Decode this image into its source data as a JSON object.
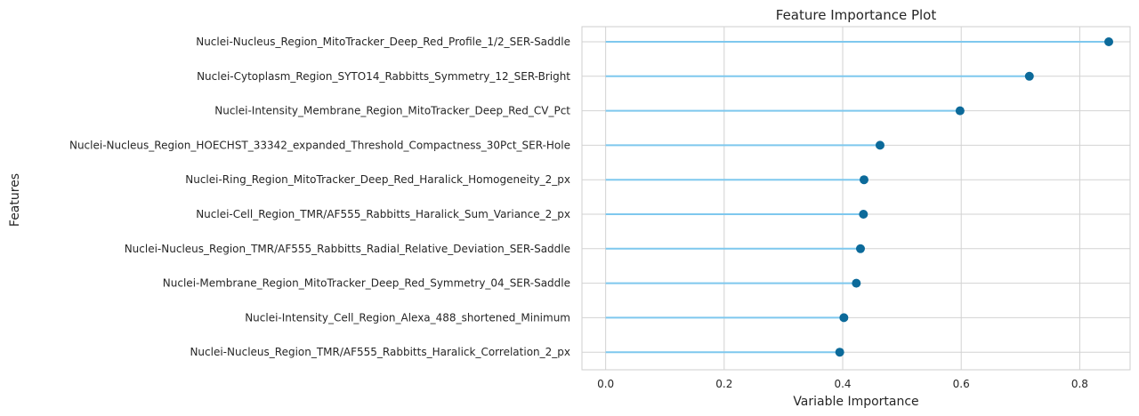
{
  "chart_data": {
    "type": "lollipop",
    "title": "Feature Importance Plot",
    "xlabel": "Variable Importance",
    "ylabel": "Features",
    "xlim": [
      -0.04,
      0.885
    ],
    "xticks": [
      0.0,
      0.2,
      0.4,
      0.6,
      0.8
    ],
    "xtick_labels": [
      "0.0",
      "0.2",
      "0.4",
      "0.6",
      "0.8"
    ],
    "grid": true,
    "colors": {
      "stem": "#7ec8ee",
      "marker": "#0c6a9a",
      "grid": "#d2d2d2",
      "spine": "#cfcfcf"
    },
    "categories": [
      "Nuclei-Nucleus_Region_MitoTracker_Deep_Red_Profile_1/2_SER-Saddle",
      "Nuclei-Cytoplasm_Region_SYTO14_Rabbitts_Symmetry_12_SER-Bright",
      "Nuclei-Intensity_Membrane_Region_MitoTracker_Deep_Red_CV_Pct",
      "Nuclei-Nucleus_Region_HOECHST_33342_expanded_Threshold_Compactness_30Pct_SER-Hole",
      "Nuclei-Ring_Region_MitoTracker_Deep_Red_Haralick_Homogeneity_2_px",
      "Nuclei-Cell_Region_TMR/AF555_Rabbitts_Haralick_Sum_Variance_2_px",
      "Nuclei-Nucleus_Region_TMR/AF555_Rabbitts_Radial_Relative_Deviation_SER-Saddle",
      "Nuclei-Membrane_Region_MitoTracker_Deep_Red_Symmetry_04_SER-Saddle",
      "Nuclei-Intensity_Cell_Region_Alexa_488_shortened_Minimum",
      "Nuclei-Nucleus_Region_TMR/AF555_Rabbitts_Haralick_Correlation_2_px"
    ],
    "values": [
      0.849,
      0.715,
      0.598,
      0.463,
      0.436,
      0.435,
      0.43,
      0.423,
      0.402,
      0.395
    ]
  }
}
